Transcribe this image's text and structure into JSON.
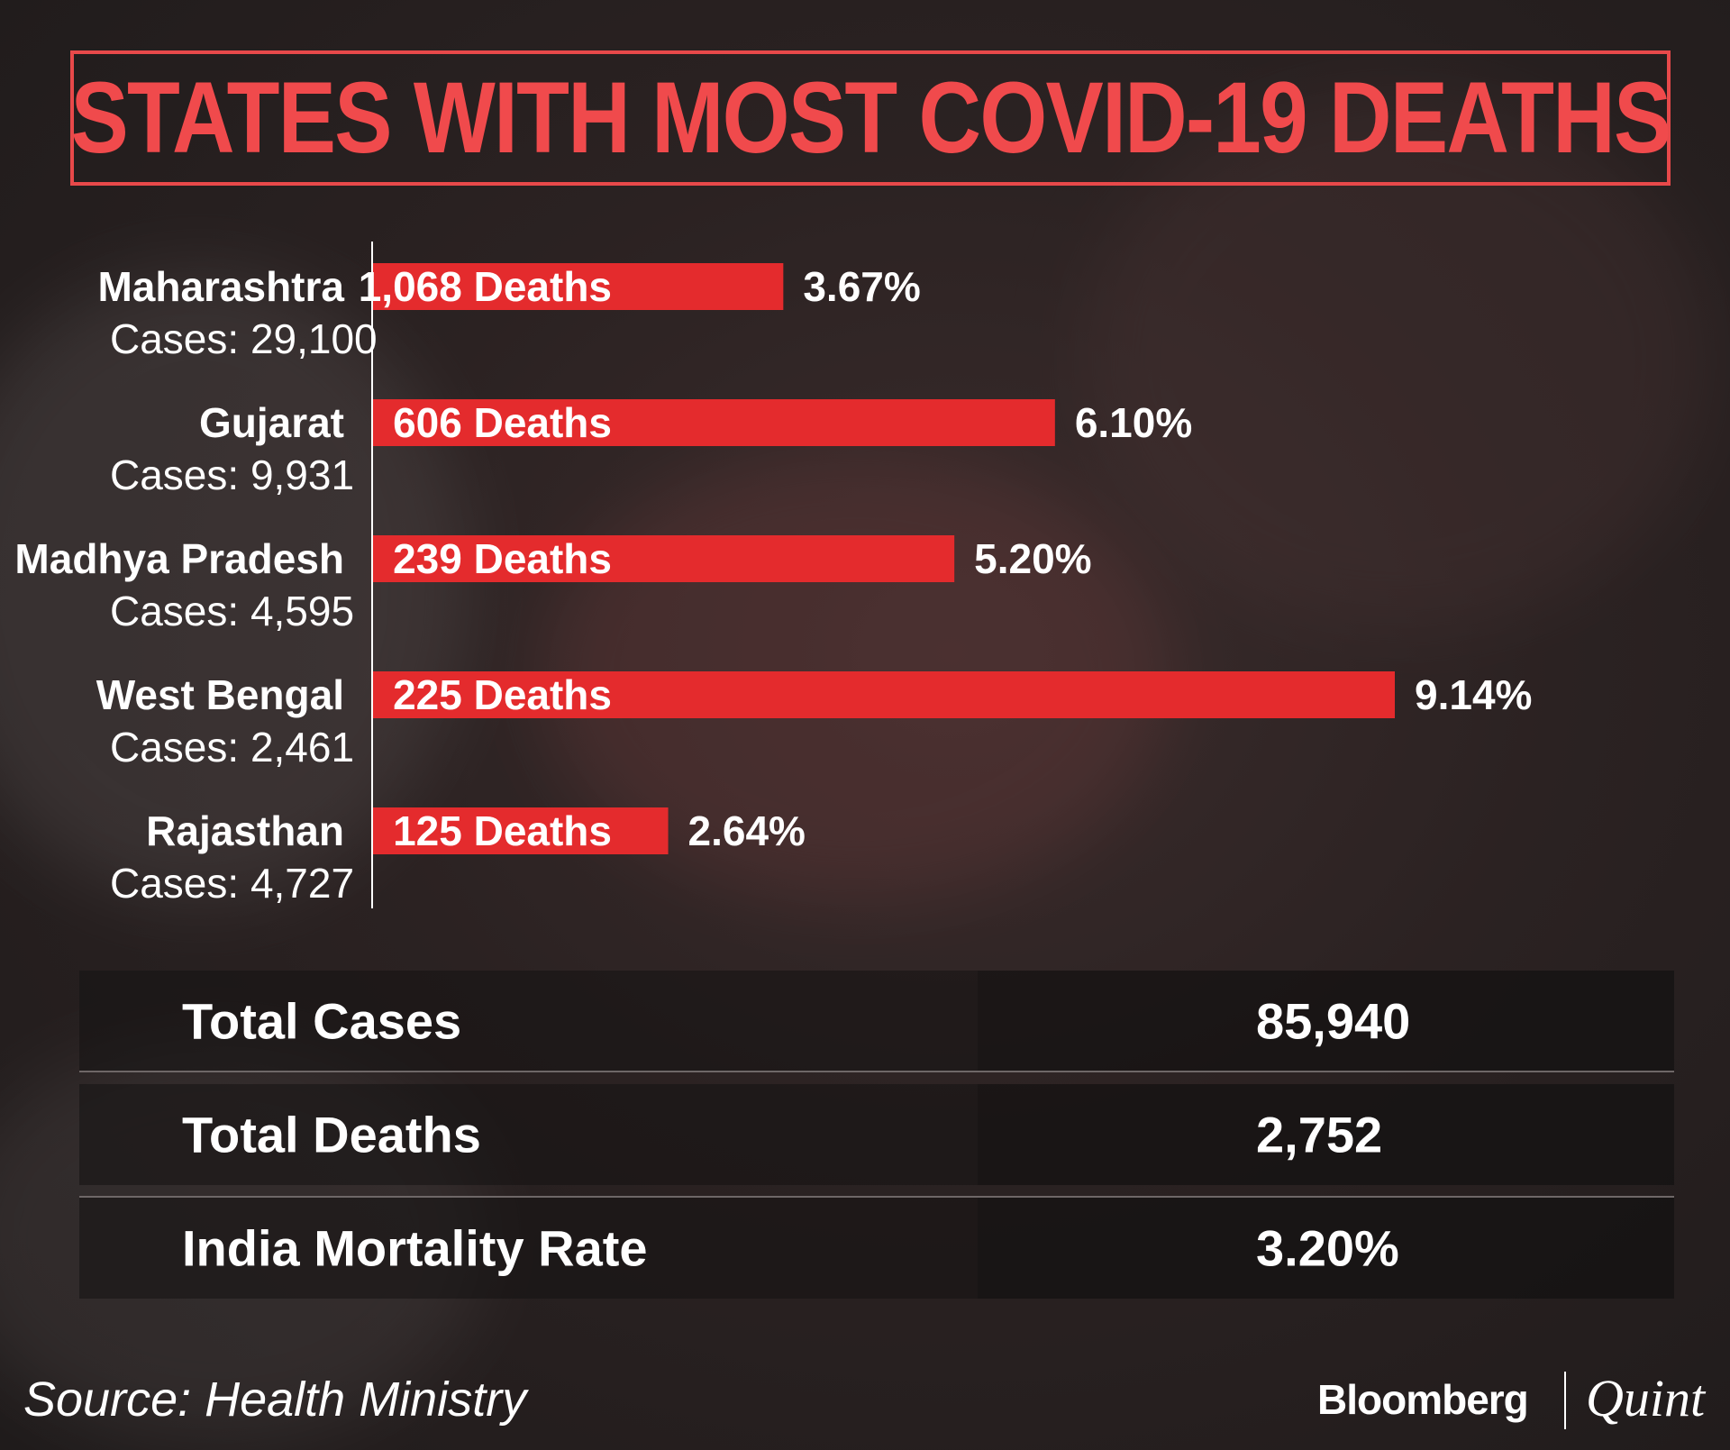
{
  "title": "STATES WITH MOST COVID-19 DEATHS",
  "chart_data": {
    "type": "bar",
    "orientation": "horizontal",
    "title": "STATES WITH MOST COVID-19 DEATHS",
    "categories": [
      "Maharashtra",
      "Gujarat",
      "Madhya Pradesh",
      "West Bengal",
      "Rajasthan"
    ],
    "cases_labels": [
      "Cases: 29,100",
      "Cases: 9,931",
      "Cases: 4,595",
      "Cases: 2,461",
      "Cases: 4,727"
    ],
    "bar_labels": [
      "1,068 Deaths",
      "606 Deaths",
      "239 Deaths",
      "225 Deaths",
      "125 Deaths"
    ],
    "values": [
      3.67,
      6.1,
      5.2,
      9.14,
      2.64
    ],
    "value_labels": [
      "3.67%",
      "6.10%",
      "5.20%",
      "9.14%",
      "2.64%"
    ],
    "deaths": [
      1068,
      606,
      239,
      225,
      125
    ],
    "cases": [
      29100,
      9931,
      4595,
      2461,
      4727
    ],
    "xlim": [
      0,
      10
    ],
    "grid": false,
    "bar_color": "#e42b2d"
  },
  "stats": [
    {
      "label": "Total Cases",
      "value": "85,940"
    },
    {
      "label": "Total Deaths",
      "value": "2,752"
    },
    {
      "label": "India Mortality Rate",
      "value": "3.20%"
    }
  ],
  "source": "Source: Health Ministry",
  "brand": {
    "left": "Bloomberg",
    "right": "Quint"
  },
  "colors": {
    "accent": "#e8494a",
    "title": "#f04a4c",
    "bar": "#e42b2d",
    "text": "#ffffff"
  }
}
